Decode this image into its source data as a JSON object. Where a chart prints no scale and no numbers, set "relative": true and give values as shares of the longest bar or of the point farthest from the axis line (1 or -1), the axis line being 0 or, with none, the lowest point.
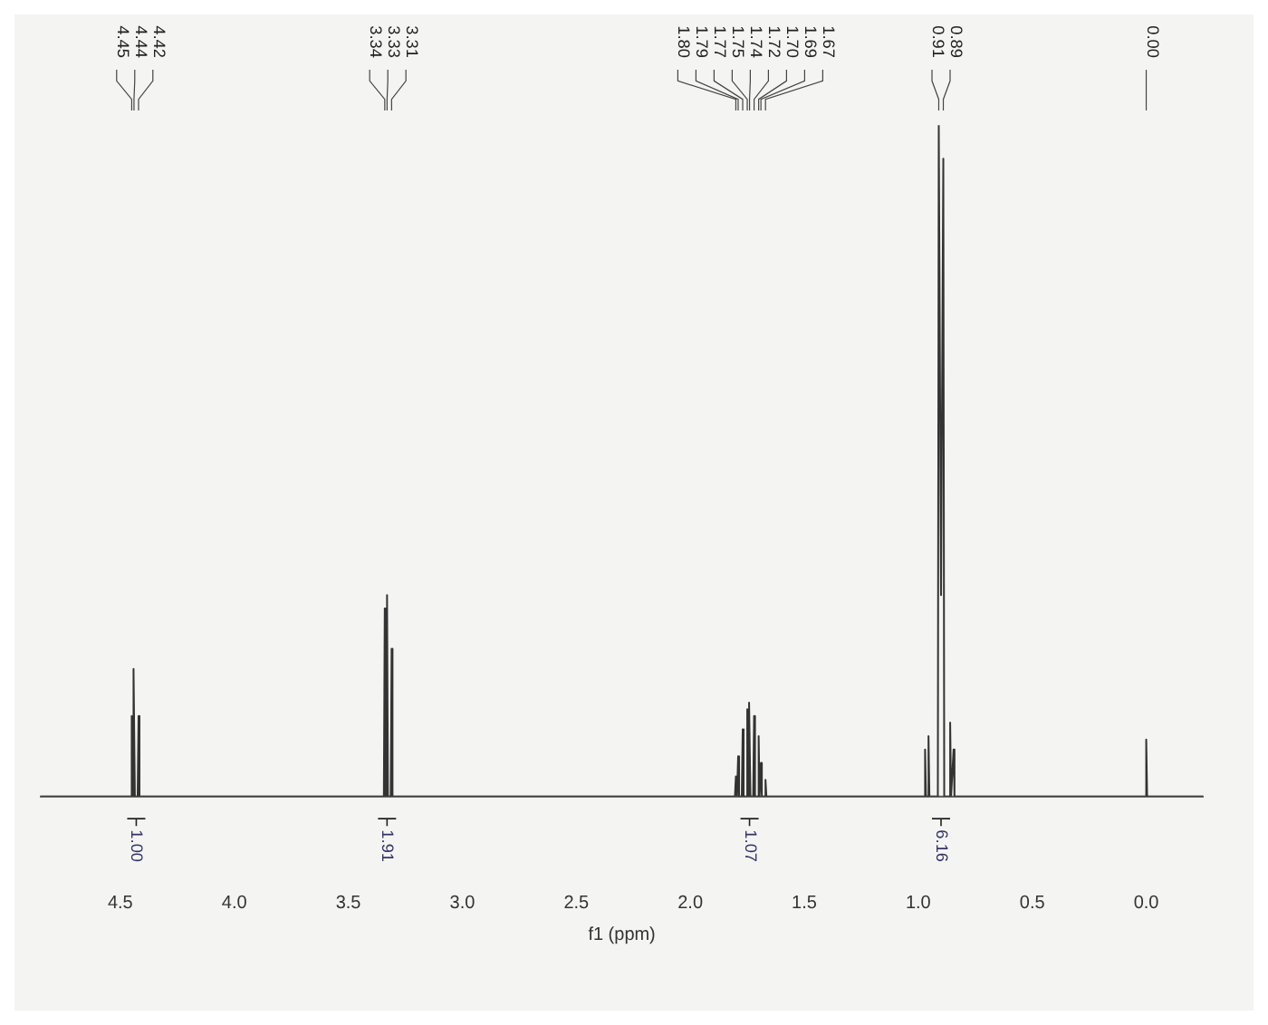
{
  "chart_data": {
    "type": "line",
    "xlabel": "f1 (ppm)",
    "relative": true,
    "grid": false,
    "legend": false,
    "marker": "none",
    "line_style": "solid",
    "xlim": [
      4.85,
      -0.25
    ],
    "xticks": [
      4.5,
      {
        "value": 4,
        "label": "4.0"
      },
      3.5,
      {
        "value": 3,
        "label": "3.0"
      },
      2.5,
      {
        "value": 2,
        "label": "2.0"
      },
      1.5,
      {
        "value": 1,
        "label": "1.0"
      },
      0.5,
      {
        "value": 0,
        "label": "0.0"
      }
    ],
    "x": [
      4.85,
      4.454,
      4.45,
      4.446,
      4.444,
      4.44,
      4.436,
      4.424,
      4.42,
      4.416,
      3.344,
      3.34,
      3.336,
      3.334,
      3.33,
      3.326,
      3.314,
      3.31,
      3.306,
      1.804,
      1.8,
      1.796,
      1.794,
      1.79,
      1.786,
      1.774,
      1.77,
      1.766,
      1.754,
      1.75,
      1.746,
      1.744,
      1.74,
      1.736,
      1.724,
      1.72,
      1.716,
      1.704,
      1.7,
      1.696,
      1.694,
      1.69,
      1.686,
      1.674,
      1.67,
      1.666,
      0.974,
      0.97,
      0.966,
      0.959,
      0.955,
      0.951,
      0.914,
      0.91,
      0.9,
      0.89,
      0.886,
      0.864,
      0.86,
      0.856,
      0.849,
      0.845,
      0.841,
      0.004,
      0.0,
      -0.004,
      -0.25
    ],
    "series": [
      {
        "color": "#333333",
        "values": [
          0,
          0,
          0.12,
          0,
          0,
          0.19,
          0,
          0,
          0.12,
          0,
          0,
          0.28,
          0,
          0,
          0.3,
          0,
          0,
          0.22,
          0,
          0,
          0.03,
          0,
          0,
          0.06,
          0,
          0,
          0.1,
          0,
          0,
          0.13,
          0,
          0,
          0.14,
          0,
          0,
          0.12,
          0,
          0,
          0.09,
          0,
          0,
          0.05,
          0,
          0,
          0.025,
          0,
          0,
          0.07,
          0,
          0,
          0.09,
          0,
          0,
          1,
          0.3,
          0.95,
          0,
          0,
          0.11,
          0,
          0,
          0.07,
          0,
          0,
          0.085,
          0,
          0
        ]
      }
    ],
    "annotations": [
      {
        "text": "4.45",
        "x": 4.45
      },
      {
        "text": "4.44",
        "x": 4.44
      },
      {
        "text": "4.42",
        "x": 4.42
      },
      {
        "text": "3.34",
        "x": 3.34
      },
      {
        "text": "3.33",
        "x": 3.33
      },
      {
        "text": "3.31",
        "x": 3.31
      },
      {
        "text": "1.80",
        "x": 1.8
      },
      {
        "text": "1.79",
        "x": 1.79
      },
      {
        "text": "1.77",
        "x": 1.77
      },
      {
        "text": "1.75",
        "x": 1.75
      },
      {
        "text": "1.74",
        "x": 1.74
      },
      {
        "text": "1.72",
        "x": 1.72
      },
      {
        "text": "1.70",
        "x": 1.7
      },
      {
        "text": "1.69",
        "x": 1.69
      },
      {
        "text": "1.67",
        "x": 1.67
      },
      {
        "text": "0.91",
        "x": 0.91
      },
      {
        "text": "0.89",
        "x": 0.89
      },
      {
        "text": "0.00",
        "x": 0.0
      },
      {
        "text": "1.00",
        "x": 4.43,
        "y": 0
      },
      {
        "text": "1.91",
        "x": 3.33,
        "y": 0
      },
      {
        "text": "1.07",
        "x": 1.74,
        "y": 0
      },
      {
        "text": "6.16",
        "x": 0.9,
        "y": 0
      }
    ]
  }
}
